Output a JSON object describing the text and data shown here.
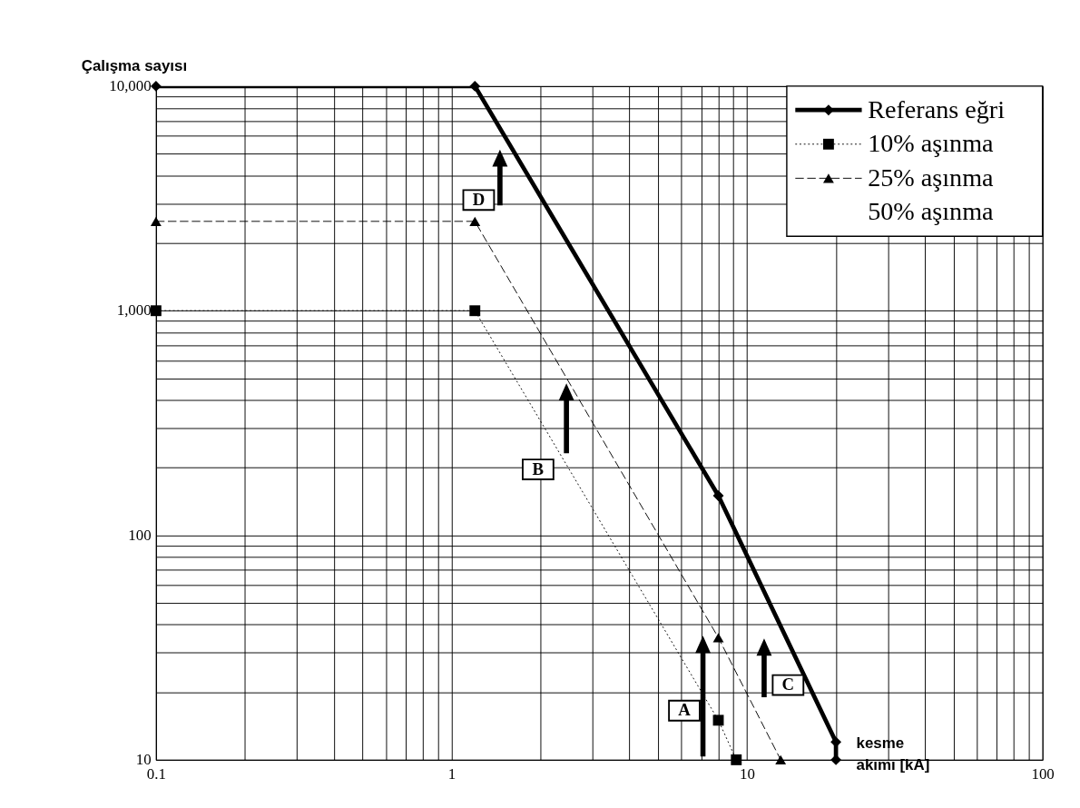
{
  "chart_data": {
    "type": "line",
    "xlabel": "kesme akımı [kA]",
    "ylabel": "Çalışma sayısı",
    "log": "xy",
    "grid": true,
    "legend": "top right",
    "xlim": [
      0.1,
      100
    ],
    "ylim": [
      10,
      10000
    ],
    "xticks": [
      0.1,
      1,
      10,
      100
    ],
    "yticks": [
      10,
      100,
      {
        "value": 1000,
        "label": "1,000"
      },
      {
        "value": 10000,
        "label": "10,000"
      }
    ],
    "series": [
      {
        "name": "Referans eğri",
        "color": "#000000",
        "marker": "diamond",
        "line_style": "solid",
        "x": [
          0.1,
          1.2,
          8,
          20,
          20
        ],
        "values": [
          10000,
          10000,
          150,
          12,
          10
        ]
      },
      {
        "name": "10% aşınma",
        "color": "#000000",
        "marker": "square",
        "line_style": "dotted",
        "x": [
          0.1,
          1.2,
          8,
          9.2
        ],
        "values": [
          1000,
          1000,
          15,
          10
        ]
      },
      {
        "name": "25% aşınma",
        "color": "#000000",
        "marker": "triangle",
        "line_style": "dashed",
        "x": [
          0.1,
          1.2,
          8,
          13
        ],
        "values": [
          2500,
          2500,
          35,
          10
        ]
      },
      {
        "name": "50% aşınma",
        "color": "#000000",
        "marker": "none",
        "line_style": "none"
      }
    ],
    "annotations": [
      "A",
      "B",
      "C",
      "D"
    ]
  }
}
